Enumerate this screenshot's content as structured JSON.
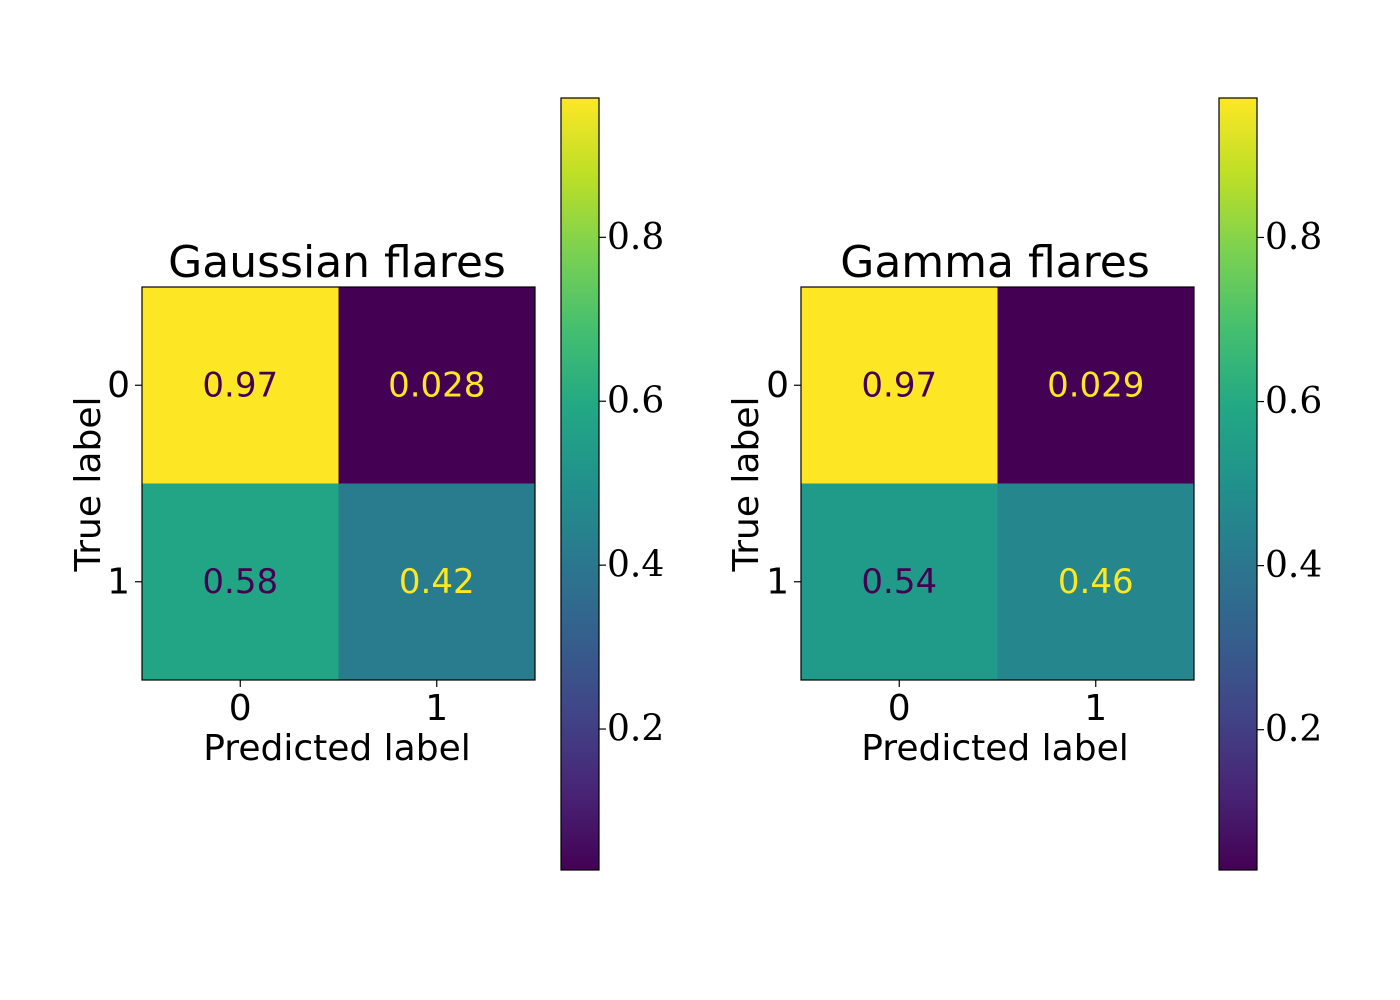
{
  "chart_data": [
    {
      "type": "heatmap",
      "title": "Gaussian flares",
      "xlabel": "Predicted label",
      "ylabel": "True label",
      "x_categories": [
        "0",
        "1"
      ],
      "y_categories": [
        "0",
        "1"
      ],
      "values": [
        [
          0.97,
          0.028
        ],
        [
          0.58,
          0.42
        ]
      ],
      "value_labels": [
        [
          "0.97",
          "0.028"
        ],
        [
          "0.58",
          "0.42"
        ]
      ],
      "colorbar": {
        "min": 0.028,
        "max": 0.97,
        "ticks": [
          0.2,
          0.4,
          0.6,
          0.8
        ],
        "tick_labels": [
          "0.2",
          "0.4",
          "0.6",
          "0.8"
        ]
      },
      "colormap": "viridis"
    },
    {
      "type": "heatmap",
      "title": "Gamma flares",
      "xlabel": "Predicted label",
      "ylabel": "True label",
      "x_categories": [
        "0",
        "1"
      ],
      "y_categories": [
        "0",
        "1"
      ],
      "values": [
        [
          0.97,
          0.029
        ],
        [
          0.54,
          0.46
        ]
      ],
      "value_labels": [
        [
          "0.97",
          "0.029"
        ],
        [
          "0.54",
          "0.46"
        ]
      ],
      "colorbar": {
        "min": 0.029,
        "max": 0.97,
        "ticks": [
          0.2,
          0.4,
          0.6,
          0.8
        ],
        "tick_labels": [
          "0.2",
          "0.4",
          "0.6",
          "0.8"
        ]
      },
      "colormap": "viridis"
    }
  ]
}
